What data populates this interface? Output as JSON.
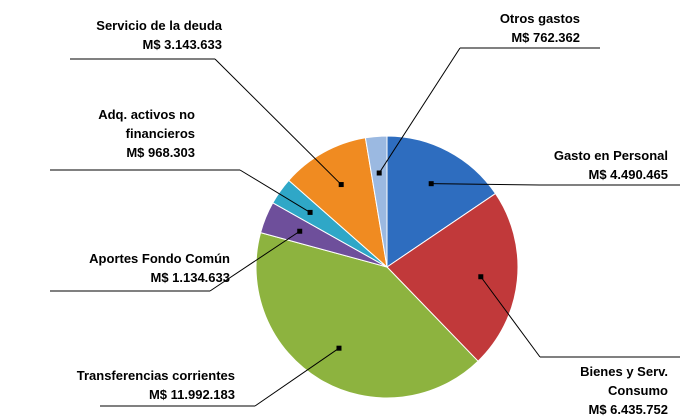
{
  "chart_data": {
    "type": "pie",
    "categories": [
      "Gasto en Personal",
      "Bienes y Serv. Consumo",
      "Transferencias corrientes",
      "Aportes Fondo Común",
      "Adq. activos no financieros",
      "Servicio  de la deuda",
      "Otros gastos"
    ],
    "values": [
      4490465,
      6435752,
      11992183,
      1134633,
      968303,
      3143633,
      762362
    ],
    "value_labels": [
      "M$ 4.490.465",
      "M$ 6.435.752",
      "M$ 11.992.183",
      "M$ 1.134.633",
      "M$ 968.303",
      "M$ 3.143.633",
      "M$ 762.362"
    ],
    "colors": [
      "#2e6dbf",
      "#c1393a",
      "#8db33f",
      "#6e4f9b",
      "#2fa7c7",
      "#f08b21",
      "#9bb9e1"
    ]
  }
}
